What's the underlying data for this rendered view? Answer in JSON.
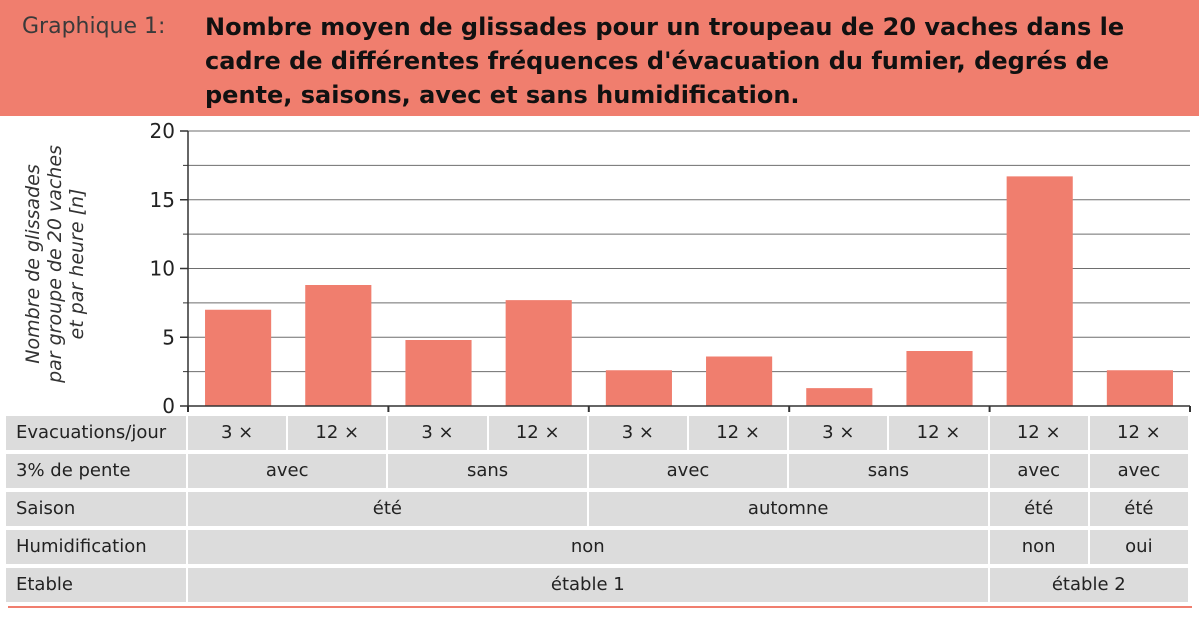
{
  "header": {
    "label": "Graphique 1:",
    "title": "Nombre moyen de glissades pour un troupeau de 20 vaches dans le cadre de différentes fréquences d'évacuation du fumier, degrés de pente, saisons, avec et sans humidification."
  },
  "colors": {
    "accent": "#f07e6e",
    "table_bg": "#dcdcdc"
  },
  "chart_data": {
    "type": "bar",
    "title": "Nombre moyen de glissades pour un troupeau de 20 vaches dans le cadre de différentes fréquences d'évacuation du fumier, degrés de pente, saisons, avec et sans humidification.",
    "ylabel_lines": [
      "Nombre de glissades",
      "par groupe de 20 vaches",
      "et par heure [n]"
    ],
    "ylim": [
      0,
      20
    ],
    "yticks": [
      0,
      5,
      10,
      15,
      20
    ],
    "ytick_labels": [
      "0",
      "5",
      "10",
      "15",
      "20"
    ],
    "grid": true,
    "values": [
      7.0,
      8.8,
      4.8,
      7.7,
      2.6,
      3.6,
      1.3,
      4.0,
      16.7,
      2.6
    ],
    "bar_color": "#f07e6e"
  },
  "table": {
    "rows": [
      {
        "label": "Evacuations/jour",
        "cells": [
          {
            "text": "3 ×",
            "span": 1
          },
          {
            "text": "12 ×",
            "span": 1
          },
          {
            "text": "3 ×",
            "span": 1
          },
          {
            "text": "12 ×",
            "span": 1
          },
          {
            "text": "3 ×",
            "span": 1
          },
          {
            "text": "12 ×",
            "span": 1
          },
          {
            "text": "3 ×",
            "span": 1
          },
          {
            "text": "12 ×",
            "span": 1
          },
          {
            "text": "12 ×",
            "span": 1
          },
          {
            "text": "12 ×",
            "span": 1
          }
        ]
      },
      {
        "label": "3% de pente",
        "cells": [
          {
            "text": "avec",
            "span": 2
          },
          {
            "text": "sans",
            "span": 2
          },
          {
            "text": "avec",
            "span": 2
          },
          {
            "text": "sans",
            "span": 2
          },
          {
            "text": "avec",
            "span": 1
          },
          {
            "text": "avec",
            "span": 1
          }
        ]
      },
      {
        "label": "Saison",
        "cells": [
          {
            "text": "été",
            "span": 4
          },
          {
            "text": "automne",
            "span": 4
          },
          {
            "text": "été",
            "span": 1
          },
          {
            "text": "été",
            "span": 1
          }
        ]
      },
      {
        "label": "Humidification",
        "cells": [
          {
            "text": "non",
            "span": 8
          },
          {
            "text": "non",
            "span": 1
          },
          {
            "text": "oui",
            "span": 1
          }
        ]
      },
      {
        "label": "Etable",
        "cells": [
          {
            "text": "étable 1",
            "span": 8
          },
          {
            "text": "étable 2",
            "span": 2
          }
        ]
      }
    ]
  }
}
